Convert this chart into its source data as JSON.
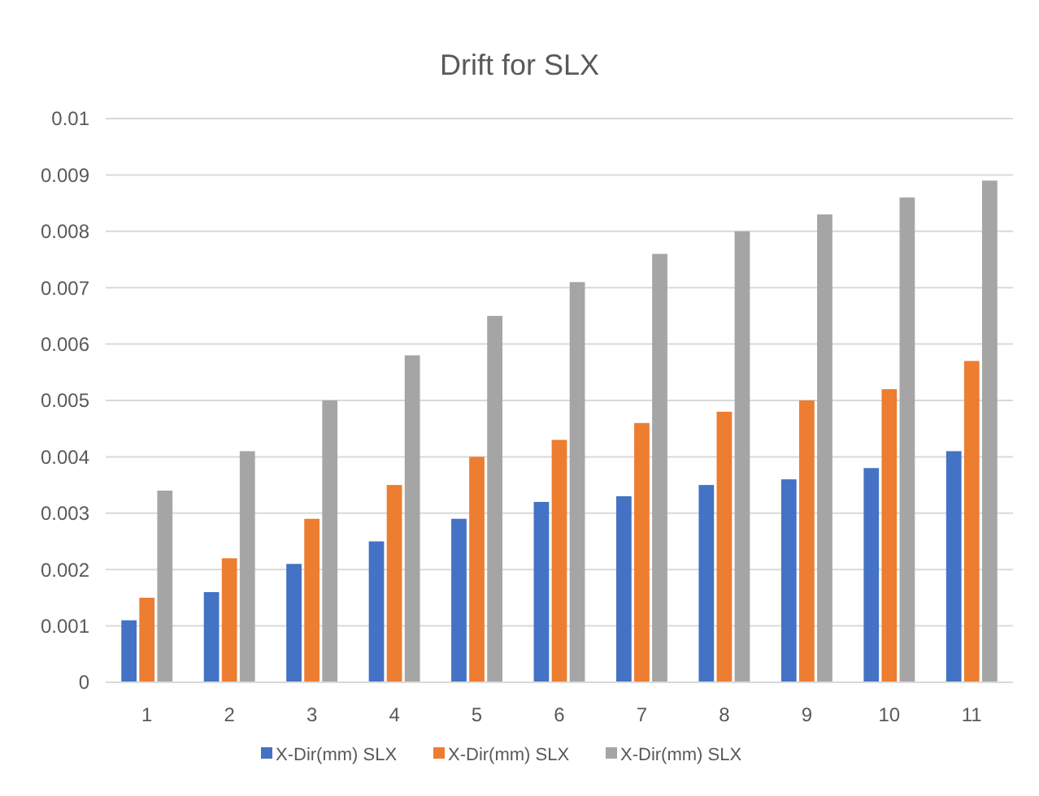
{
  "chart_data": {
    "type": "bar",
    "title": "Drift for SLX",
    "categories": [
      "1",
      "2",
      "3",
      "4",
      "5",
      "6",
      "7",
      "8",
      "9",
      "10",
      "11"
    ],
    "series": [
      {
        "name": "X-Dir(mm) SLX",
        "color": "#4472c4",
        "values": [
          0.0011,
          0.0016,
          0.0021,
          0.0025,
          0.0029,
          0.0032,
          0.0033,
          0.0035,
          0.0036,
          0.0038,
          0.0041
        ]
      },
      {
        "name": "X-Dir(mm) SLX",
        "color": "#ed7d31",
        "values": [
          0.0015,
          0.0022,
          0.0029,
          0.0035,
          0.004,
          0.0043,
          0.0046,
          0.0048,
          0.005,
          0.0052,
          0.0057
        ]
      },
      {
        "name": "X-Dir(mm) SLX",
        "color": "#a5a5a5",
        "values": [
          0.0034,
          0.0041,
          0.005,
          0.0058,
          0.0065,
          0.0071,
          0.0076,
          0.008,
          0.0083,
          0.0086,
          0.0089
        ]
      }
    ],
    "ylim": [
      0,
      0.01
    ],
    "yticks": [
      0,
      0.001,
      0.002,
      0.003,
      0.004,
      0.005,
      0.006,
      0.007,
      0.008,
      0.009,
      0.01
    ],
    "grid": "y",
    "legend": "bottom"
  }
}
